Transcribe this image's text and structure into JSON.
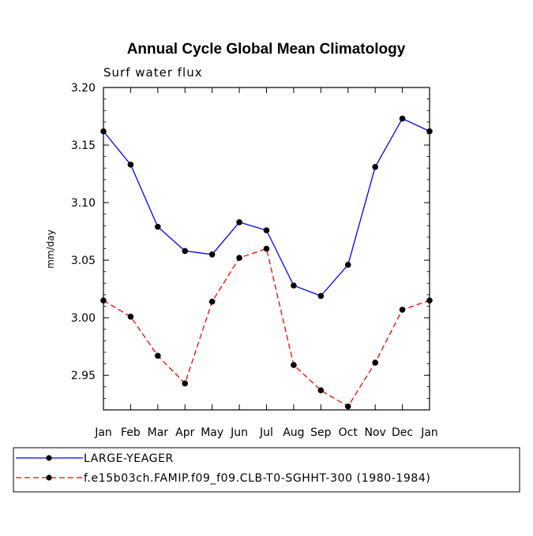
{
  "chart_data": {
    "type": "line",
    "title": "Annual Cycle Global Mean Climatology",
    "subtitle": "Surf water flux",
    "xlabel": "",
    "ylabel": "mm/day",
    "categories": [
      "Jan",
      "Feb",
      "Mar",
      "Apr",
      "May",
      "Jun",
      "Jul",
      "Aug",
      "Sep",
      "Oct",
      "Nov",
      "Dec",
      "Jan"
    ],
    "ylim": [
      2.92,
      3.2
    ],
    "yticks": [
      2.95,
      3.0,
      3.05,
      3.1,
      3.15,
      3.2
    ],
    "ytick_labels": [
      "2.95",
      "3.00",
      "3.05",
      "3.10",
      "3.15",
      "3.20"
    ],
    "legend_position": "bottom",
    "series": [
      {
        "name": "LARGE-YEAGER",
        "color": "#0000ff",
        "dash": "solid",
        "values": [
          3.162,
          3.133,
          3.079,
          3.058,
          3.055,
          3.083,
          3.076,
          3.028,
          3.019,
          3.046,
          3.131,
          3.173,
          3.162
        ]
      },
      {
        "name": "f.e15b03ch.FAMIP.f09_f09.CLB-T0-SGHHT-300 (1980-1984)",
        "color": "#ff0000",
        "dash": "dashed",
        "values": [
          3.015,
          3.001,
          2.967,
          2.943,
          3.014,
          3.052,
          3.06,
          2.959,
          2.937,
          2.923,
          2.961,
          3.007,
          3.015
        ]
      }
    ]
  }
}
